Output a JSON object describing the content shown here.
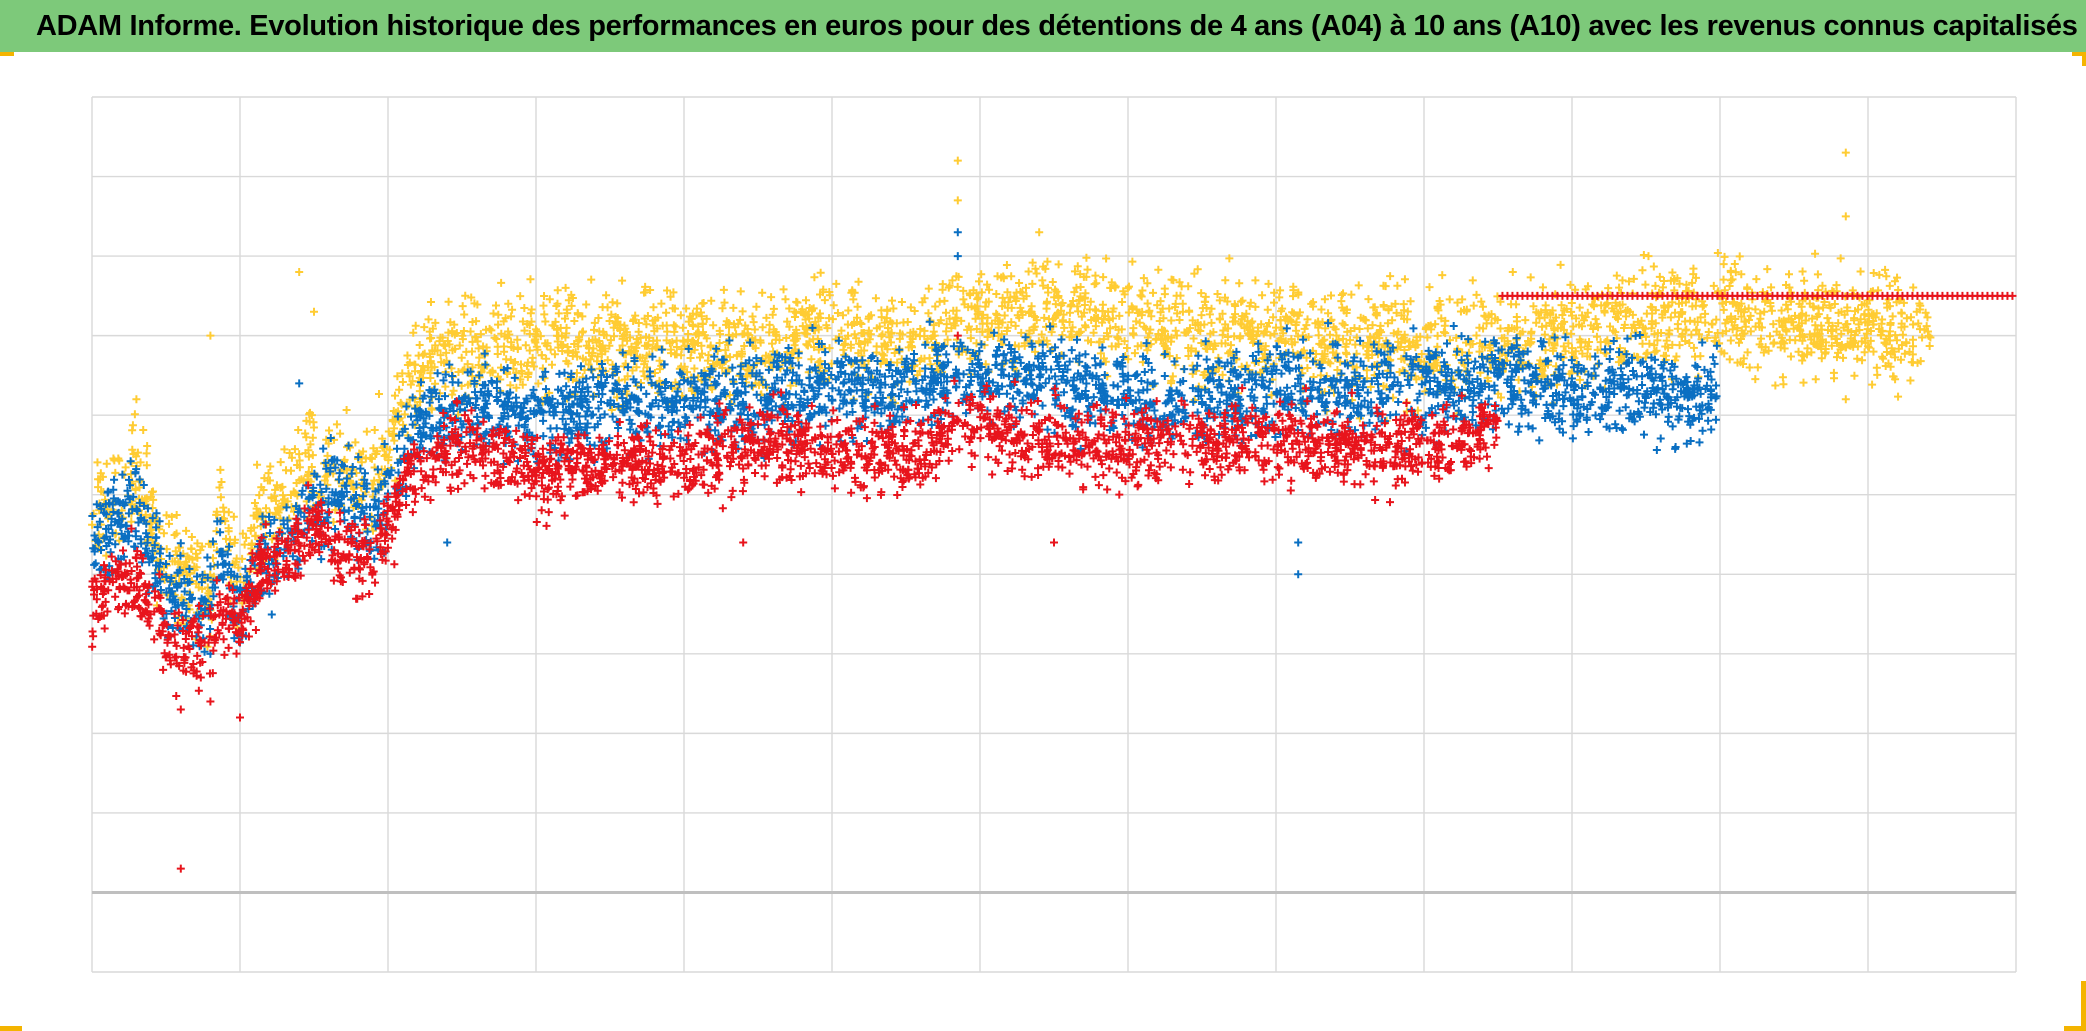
{
  "title": "ADAM Informe. Evolution historique des performances en euros pour des détentions de 4 ans (A04) à 10 ans (A10) avec les revenus connus capitalisés",
  "colors": {
    "title_bar": "#7dc97a",
    "grid": "#d9d9d9",
    "axis_line": "#bfbfbf",
    "corner_accent": "#f4b400"
  },
  "chart_data": {
    "type": "scatter",
    "title": "ADAM Informe. Evolution historique des performances en euros pour des détentions de 4 ans (A04) à 10 ans (A10) avec les revenus connus capitalisés",
    "xlabel": "",
    "ylabel": "",
    "xlim": [
      0,
      13
    ],
    "ylim": [
      -1,
      10
    ],
    "x_gridlines": 13,
    "y_gridlines": 11,
    "grid": true,
    "legend": "none",
    "tick_labels": "none",
    "marker": "+",
    "series": [
      {
        "color": "#ffcc33",
        "x_range": [
          0,
          12.43
        ],
        "points": [
          [
            0.0,
            4.7
          ],
          [
            0.3,
            5.3
          ],
          [
            0.5,
            4.1
          ],
          [
            0.8,
            3.8
          ],
          [
            0.85,
            4.9
          ],
          [
            1.0,
            3.9
          ],
          [
            1.15,
            4.8
          ],
          [
            1.3,
            5.0
          ],
          [
            1.5,
            5.5
          ],
          [
            1.7,
            5.3
          ],
          [
            1.9,
            5.2
          ],
          [
            2.2,
            6.6
          ],
          [
            2.5,
            6.8
          ],
          [
            3,
            6.9
          ],
          [
            3.5,
            6.9
          ],
          [
            4,
            6.9
          ],
          [
            4.5,
            6.8
          ],
          [
            5,
            7.1
          ],
          [
            5.5,
            6.9
          ],
          [
            6,
            7.2
          ],
          [
            6.5,
            7.3
          ],
          [
            7,
            7.2
          ],
          [
            7.5,
            7.0
          ],
          [
            8,
            7.0
          ],
          [
            8.5,
            6.9
          ],
          [
            9,
            6.9
          ],
          [
            9.5,
            6.9
          ],
          [
            10,
            7.0
          ],
          [
            10.5,
            7.2
          ],
          [
            11,
            7.3
          ],
          [
            11.5,
            7.1
          ],
          [
            12,
            7.1
          ],
          [
            12.43,
            7.0
          ]
        ],
        "spread": 0.32,
        "outliers": [
          [
            0.3,
            6.2
          ],
          [
            0.8,
            7.0
          ],
          [
            1.4,
            7.8
          ],
          [
            1.5,
            7.3
          ],
          [
            3.2,
            7.6
          ],
          [
            5.85,
            8.7
          ],
          [
            5.85,
            9.2
          ],
          [
            6.4,
            8.3
          ],
          [
            11.85,
            9.3
          ],
          [
            11.85,
            8.5
          ],
          [
            11.85,
            6.2
          ],
          [
            9.6,
            7.8
          ]
        ]
      },
      {
        "color": "#0a6fc2",
        "x_range": [
          0,
          11.0
        ],
        "points": [
          [
            0.0,
            4.5
          ],
          [
            0.3,
            4.8
          ],
          [
            0.5,
            3.8
          ],
          [
            0.8,
            3.6
          ],
          [
            0.85,
            4.4
          ],
          [
            1.0,
            3.5
          ],
          [
            1.15,
            4.3
          ],
          [
            1.3,
            4.4
          ],
          [
            1.5,
            4.9
          ],
          [
            1.7,
            5.0
          ],
          [
            1.9,
            4.7
          ],
          [
            2.2,
            5.9
          ],
          [
            2.5,
            6.1
          ],
          [
            3,
            6.0
          ],
          [
            3.5,
            6.1
          ],
          [
            4,
            6.2
          ],
          [
            4.5,
            6.2
          ],
          [
            5,
            6.3
          ],
          [
            5.5,
            6.3
          ],
          [
            6,
            6.5
          ],
          [
            6.5,
            6.4
          ],
          [
            7,
            6.2
          ],
          [
            7.5,
            6.2
          ],
          [
            8,
            6.3
          ],
          [
            8.5,
            6.3
          ],
          [
            9,
            6.4
          ],
          [
            9.5,
            6.5
          ],
          [
            10,
            6.3
          ],
          [
            10.5,
            6.3
          ],
          [
            11.0,
            6.3
          ]
        ],
        "spread": 0.28,
        "outliers": [
          [
            0.8,
            3.0
          ],
          [
            1.4,
            6.4
          ],
          [
            5.85,
            8.3
          ],
          [
            5.85,
            8.0
          ],
          [
            8.15,
            4.4
          ],
          [
            8.15,
            4.0
          ],
          [
            2.4,
            4.4
          ],
          [
            10.7,
            5.6
          ]
        ]
      },
      {
        "color": "#e8141c",
        "x_range": [
          0,
          9.5
        ],
        "points": [
          [
            0.0,
            3.6
          ],
          [
            0.3,
            4.0
          ],
          [
            0.5,
            3.2
          ],
          [
            0.8,
            3.0
          ],
          [
            0.85,
            3.6
          ],
          [
            1.0,
            3.3
          ],
          [
            1.15,
            4.1
          ],
          [
            1.3,
            4.2
          ],
          [
            1.5,
            4.6
          ],
          [
            1.7,
            4.2
          ],
          [
            1.9,
            4.3
          ],
          [
            2.2,
            5.3
          ],
          [
            2.5,
            5.6
          ],
          [
            3,
            5.3
          ],
          [
            3.5,
            5.4
          ],
          [
            4,
            5.4
          ],
          [
            4.5,
            5.6
          ],
          [
            5,
            5.6
          ],
          [
            5.5,
            5.5
          ],
          [
            6,
            5.9
          ],
          [
            6.5,
            5.6
          ],
          [
            7,
            5.6
          ],
          [
            7.5,
            5.7
          ],
          [
            8,
            5.7
          ],
          [
            8.5,
            5.6
          ],
          [
            9,
            5.6
          ],
          [
            9.5,
            5.8
          ]
        ],
        "spread": 0.24,
        "outliers": [
          [
            0.6,
            2.3
          ],
          [
            0.8,
            2.4
          ],
          [
            1.0,
            2.2
          ],
          [
            0.6,
            0.3
          ],
          [
            4.4,
            4.4
          ],
          [
            6.5,
            4.4
          ],
          [
            5.85,
            7.0
          ]
        ]
      },
      {
        "color": "#e8141c",
        "line": true,
        "x_range": [
          9.53,
          13.0
        ],
        "y": 7.5
      }
    ]
  }
}
